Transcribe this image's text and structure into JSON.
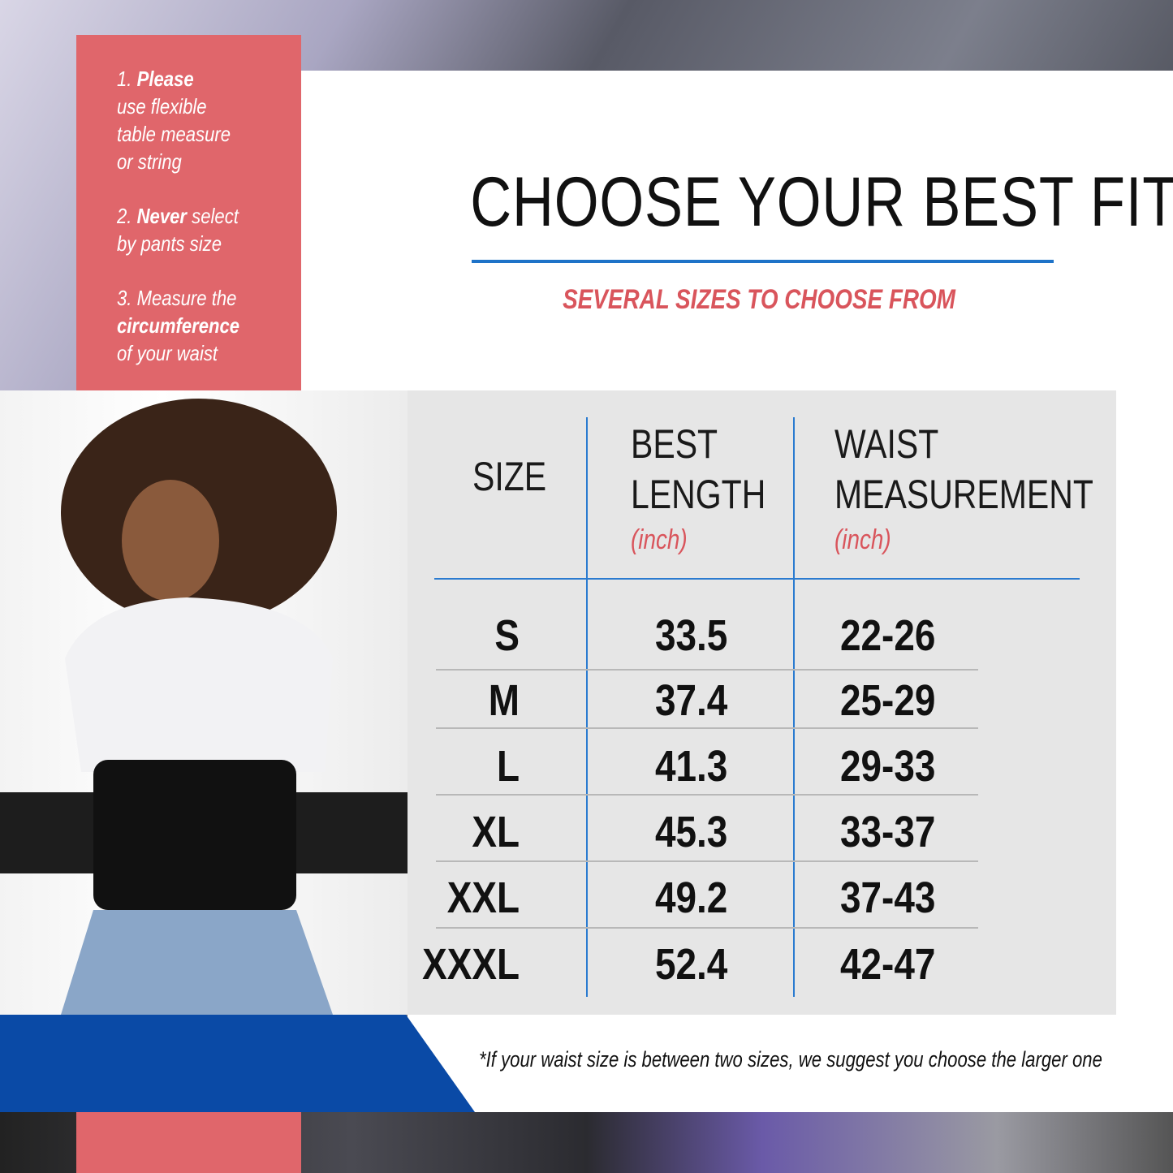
{
  "tips": {
    "tip1": {
      "number": "1.",
      "bold": "Please",
      "rest_lines": [
        "use flexible",
        "table measure",
        "or string"
      ]
    },
    "tip2": {
      "number": "2.",
      "bold": "Never",
      "after_bold": " select",
      "rest_lines": [
        "by pants size"
      ]
    },
    "tip3": {
      "line1": "3. Measure the",
      "bold": "circumference",
      "line3": "of your waist"
    }
  },
  "title": "CHOOSE YOUR BEST FIT",
  "subtitle": "SEVERAL SIZES TO CHOOSE FROM",
  "table": {
    "headers": {
      "size": "SIZE",
      "length_line1": "BEST",
      "length_line2": "LENGTH",
      "length_unit": "(inch)",
      "waist_line1": "WAIST",
      "waist_line2": "MEASUREMENT",
      "waist_unit": "(inch)"
    },
    "rows": [
      {
        "size": "S",
        "length": "33.5",
        "waist": "22-26"
      },
      {
        "size": "M",
        "length": "37.4",
        "waist": "25-29"
      },
      {
        "size": "L",
        "length": "41.3",
        "waist": "29-33"
      },
      {
        "size": "XL",
        "length": "45.3",
        "waist": "33-37"
      },
      {
        "size": "XXL",
        "length": "49.2",
        "waist": "37-43"
      },
      {
        "size": "XXXL",
        "length": "52.4",
        "waist": "42-47"
      }
    ]
  },
  "footnote": "*If your waist size is between two sizes, we suggest you choose the larger one",
  "colors": {
    "accent_red": "#e0666b",
    "accent_blue": "#0a4aa6",
    "line_blue": "#2b7bd0",
    "table_bg": "#e6e6e6"
  }
}
